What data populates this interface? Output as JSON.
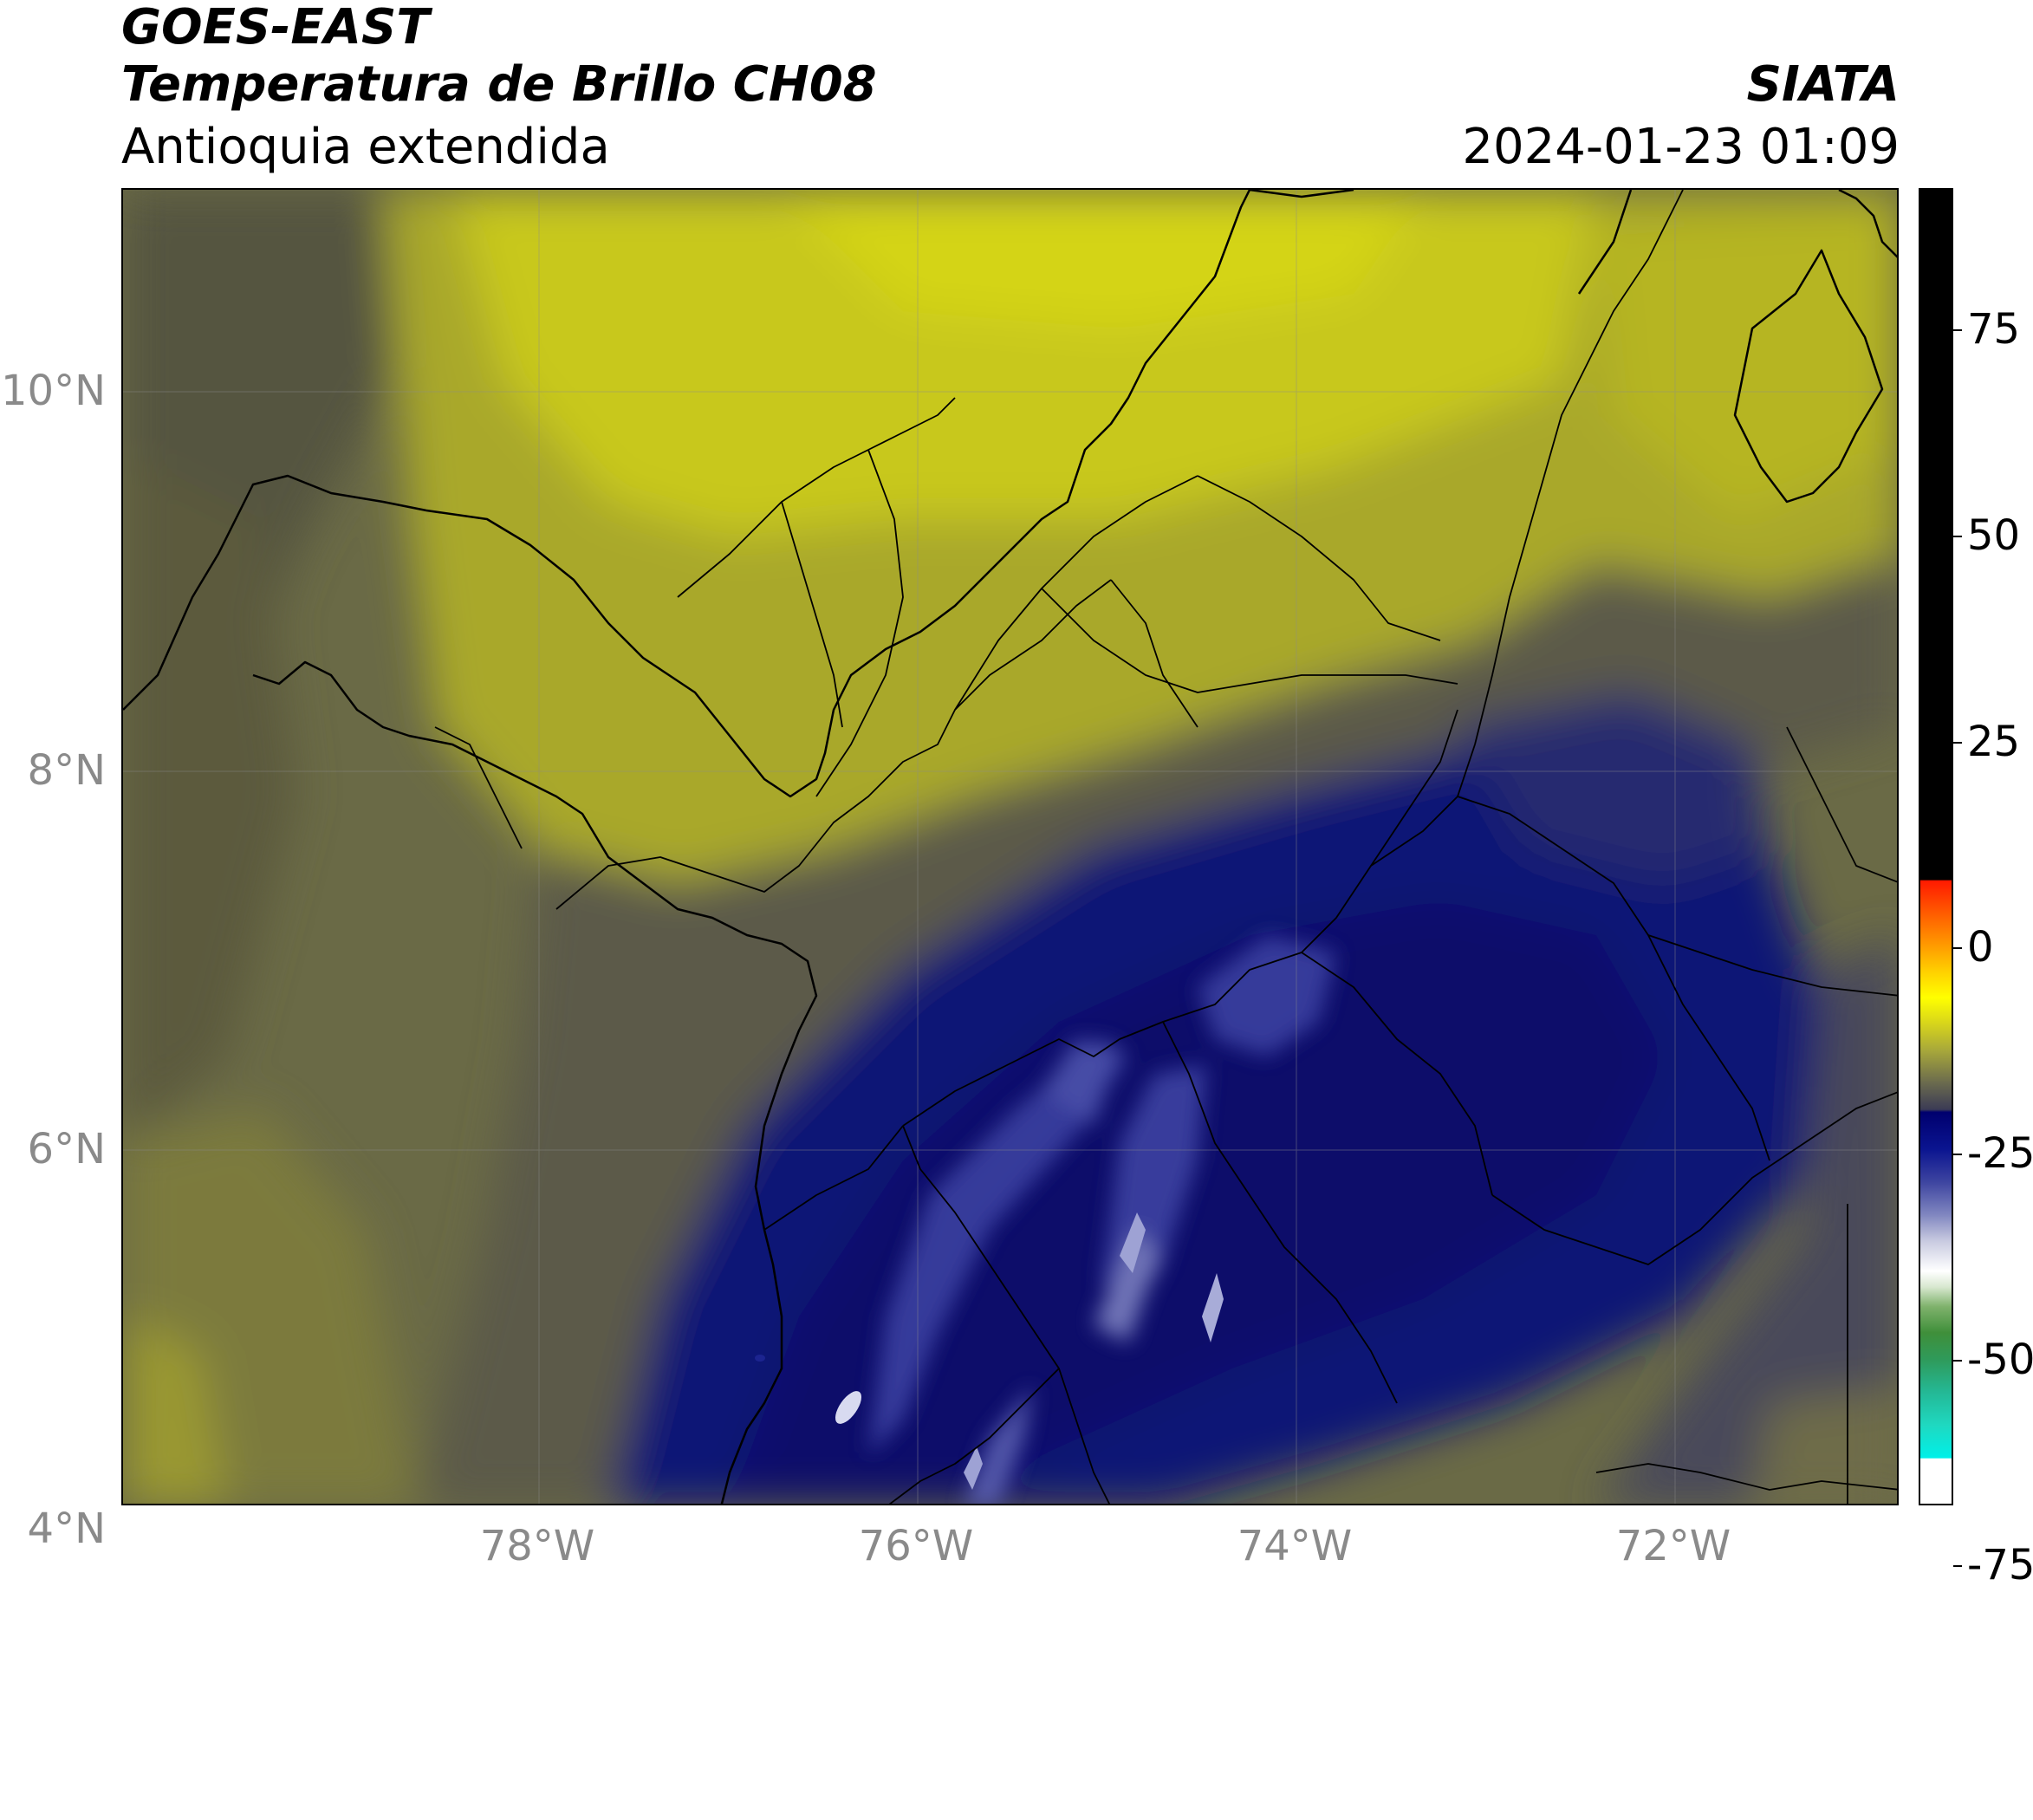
{
  "header": {
    "satellite": "GOES-EAST",
    "product": "Temperatura de Brillo CH08",
    "region": "Antioquia extendida",
    "agency": "SIATA",
    "datetime": "2024-01-23 01:09"
  },
  "map": {
    "lat_labels": [
      "10°N",
      "8°N",
      "6°N",
      "4°N"
    ],
    "lon_labels": [
      "78°W",
      "76°W",
      "74°W",
      "72°W"
    ]
  },
  "colorbar": {
    "labels": [
      "75",
      "50",
      "25",
      "0",
      "-25",
      "-50",
      "-75"
    ],
    "colors": {
      "warm_black": "#000000",
      "red": "#ff1a00",
      "yellow": "#ffff00",
      "olive": "#a8a83a",
      "gray_blue": "#3b3b55",
      "navy": "#00006e",
      "white": "#ffffff",
      "green": "#3f8f3a",
      "cyan": "#00f0e8"
    }
  }
}
